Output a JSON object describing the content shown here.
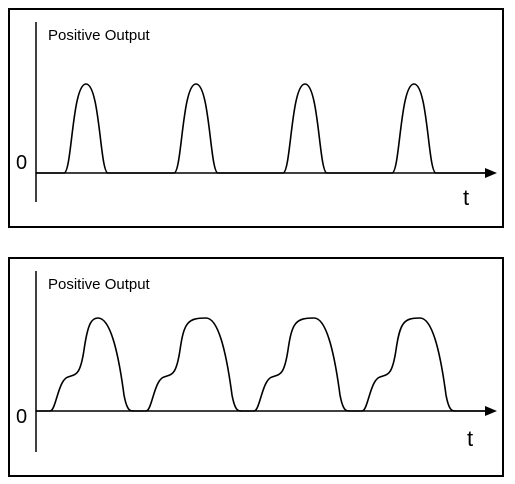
{
  "panels": [
    {
      "y_label": "Positive Output",
      "zero_label": "0",
      "x_label": "t",
      "waveform": "single-hump pulse train",
      "pulse_count": 4
    },
    {
      "y_label": "Positive Output",
      "zero_label": "0",
      "x_label": "t",
      "waveform": "pulse train with shoulder before peak",
      "pulse_count": 4
    }
  ]
}
